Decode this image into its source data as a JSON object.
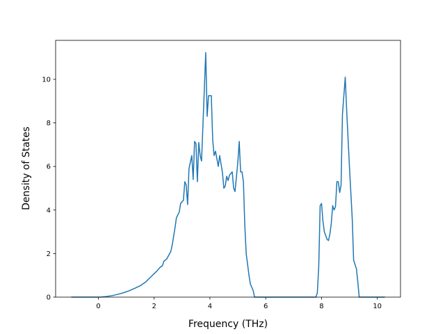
{
  "chart_data": {
    "type": "line",
    "x_label": "Frequency (THz)",
    "y_label": "Density of States",
    "x": [
      -0.97,
      -0.5,
      0,
      0.1,
      0.3,
      0.5,
      0.7,
      0.9,
      1.1,
      1.3,
      1.5,
      1.7,
      1.9,
      2.1,
      2.2,
      2.3,
      2.35,
      2.45,
      2.6,
      2.65,
      2.75,
      2.8,
      2.9,
      2.95,
      3.05,
      3.1,
      3.15,
      3.2,
      3.25,
      3.35,
      3.4,
      3.45,
      3.5,
      3.55,
      3.6,
      3.65,
      3.7,
      3.85,
      3.9,
      3.95,
      4.05,
      4.1,
      4.15,
      4.2,
      4.3,
      4.35,
      4.45,
      4.5,
      4.55,
      4.6,
      4.65,
      4.7,
      4.8,
      4.85,
      4.9,
      5.0,
      5.05,
      5.1,
      5.15,
      5.2,
      5.25,
      5.3,
      5.4,
      5.45,
      5.55,
      5.6,
      6.5,
      7.8,
      7.85,
      7.9,
      7.95,
      8.0,
      8.05,
      8.1,
      8.2,
      8.25,
      8.3,
      8.35,
      8.4,
      8.45,
      8.5,
      8.55,
      8.6,
      8.65,
      8.7,
      8.75,
      8.85,
      8.9,
      9.0,
      9.1,
      9.15,
      9.25,
      9.3,
      9.35,
      10.27
    ],
    "series": [
      {
        "color": "#1f77b4",
        "values": [
          0,
          0,
          0,
          0.005,
          0.03,
          0.07,
          0.13,
          0.2,
          0.29,
          0.4,
          0.52,
          0.7,
          0.95,
          1.2,
          1.35,
          1.45,
          1.65,
          1.75,
          2.1,
          2.4,
          3.2,
          3.65,
          3.9,
          4.3,
          4.45,
          5.3,
          5.15,
          4.25,
          5.9,
          6.5,
          5.4,
          7.15,
          7.05,
          5.3,
          7.1,
          6.5,
          6.25,
          11.23,
          8.3,
          9.25,
          9.25,
          7.2,
          6.5,
          6.7,
          6.0,
          6.5,
          5.7,
          5.0,
          5.1,
          5.55,
          5.35,
          5.6,
          5.75,
          5.0,
          4.85,
          6.2,
          7.15,
          5.75,
          5.75,
          5.3,
          3.3,
          2.0,
          1.0,
          0.6,
          0.3,
          0,
          0,
          0,
          0.2,
          1.4,
          4.2,
          4.3,
          3.5,
          3.0,
          2.65,
          2.6,
          2.9,
          3.4,
          4.2,
          4.0,
          4.15,
          5.3,
          5.3,
          4.8,
          5.15,
          8.4,
          10.1,
          8.6,
          6.0,
          3.6,
          1.7,
          1.3,
          0.7,
          0,
          0
        ]
      }
    ],
    "xlim": [
      -1.53,
      10.83
    ],
    "ylim": [
      0,
      11.79
    ],
    "xticks": [
      0,
      2,
      4,
      6,
      8,
      10
    ],
    "yticks": [
      0,
      2,
      4,
      6,
      8,
      10
    ]
  }
}
